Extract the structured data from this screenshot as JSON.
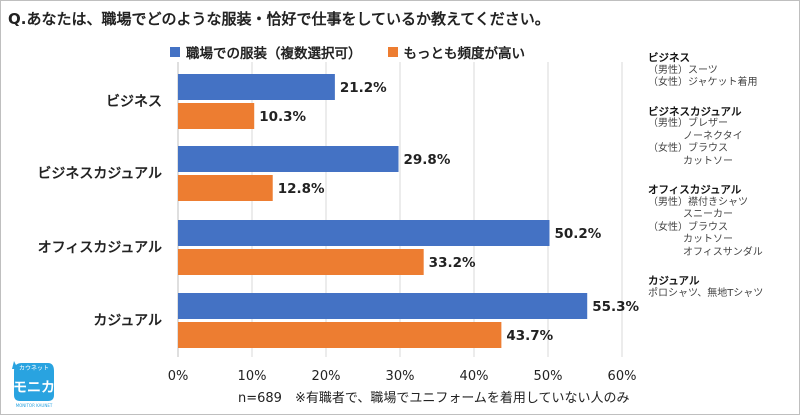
{
  "chart_data": {
    "type": "bar",
    "orientation": "horizontal",
    "title": "Q.あなたは、職場でどのような服装・恰好で仕事をしているか教えてください。",
    "categories": [
      "ビジネス",
      "ビジネスカジュアル",
      "オフィスカジュアル",
      "カジュアル"
    ],
    "series": [
      {
        "name": "職場での服装（複数選択可）",
        "color": "#4472c4",
        "values": [
          21.2,
          29.8,
          50.2,
          55.3
        ]
      },
      {
        "name": "もっとも頻度が高い",
        "color": "#ed7d31",
        "values": [
          10.3,
          12.8,
          33.2,
          43.7
        ]
      }
    ],
    "data_labels": [
      [
        "21.2%",
        "29.8%",
        "50.2%",
        "55.3%"
      ],
      [
        "10.3%",
        "12.8%",
        "33.2%",
        "43.7%"
      ]
    ],
    "xlim": [
      0,
      60
    ],
    "x_ticks": [
      "0%",
      "10%",
      "20%",
      "30%",
      "40%",
      "50%",
      "60%"
    ],
    "grid": "vertical",
    "legend": "top"
  },
  "notes": [
    {
      "heading": "ビジネス",
      "lines": [
        [
          "（男性）",
          "スーツ"
        ],
        [
          "（女性）",
          "ジャケット着用"
        ]
      ]
    },
    {
      "heading": "ビジネスカジュアル",
      "lines": [
        [
          "（男性）",
          "ブレザー"
        ],
        [
          "",
          "ノーネクタイ"
        ],
        [
          "（女性）",
          "ブラウス"
        ],
        [
          "",
          "カットソー"
        ]
      ]
    },
    {
      "heading": "オフィスカジュアル",
      "lines": [
        [
          "（男性）",
          "襟付きシャツ"
        ],
        [
          "",
          "スニーカー"
        ],
        [
          "（女性）",
          "ブラウス"
        ],
        [
          "",
          "カットソー"
        ],
        [
          "",
          "オフィスサンダル"
        ]
      ]
    },
    {
      "heading": "カジュアル",
      "lines": [
        [
          "",
          "ポロシャツ、無地Tシャツ"
        ]
      ]
    }
  ],
  "footer": "n=689　※有職者で、職場でユニフォームを着用していない人のみ",
  "logo": {
    "top": "カウネット",
    "main": "モニカ",
    "bottom": "MONITOR KAUNET",
    "color": "#29a3e0"
  }
}
